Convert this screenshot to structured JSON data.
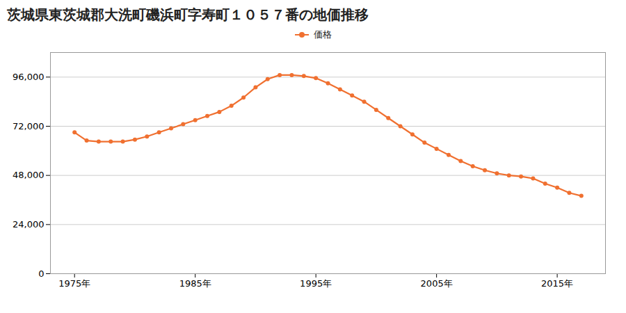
{
  "chart_data": {
    "type": "line",
    "title": "茨城県東茨城郡大洗町磯浜町字寿町１０５７番の地価推移",
    "x": [
      1975,
      1976,
      1977,
      1978,
      1979,
      1980,
      1981,
      1982,
      1983,
      1984,
      1985,
      1986,
      1987,
      1988,
      1989,
      1990,
      1991,
      1992,
      1993,
      1994,
      1995,
      1996,
      1997,
      1998,
      1999,
      2000,
      2001,
      2002,
      2003,
      2004,
      2005,
      2006,
      2007,
      2008,
      2009,
      2010,
      2011,
      2012,
      2013,
      2014,
      2015,
      2016,
      2017
    ],
    "series": [
      {
        "name": "価格",
        "color": "#F07030",
        "marker": "circle",
        "values": [
          69000,
          65000,
          64500,
          64500,
          64500,
          65500,
          67000,
          69000,
          71000,
          73000,
          75000,
          77000,
          79000,
          82000,
          86000,
          91000,
          95000,
          97000,
          97000,
          96500,
          95500,
          93000,
          90000,
          87000,
          84000,
          80000,
          76000,
          72000,
          68000,
          64000,
          61000,
          58000,
          55000,
          52500,
          50500,
          49000,
          48000,
          47500,
          46500,
          44000,
          42000,
          39500,
          38000
        ]
      }
    ],
    "xlim": [
      1973,
      2019
    ],
    "xticks": [
      {
        "value": 1975,
        "label": "1975年"
      },
      {
        "value": 1985,
        "label": "1985年"
      },
      {
        "value": 1995,
        "label": "1995年"
      },
      {
        "value": 2005,
        "label": "2005年"
      },
      {
        "value": 2015,
        "label": "2015年"
      }
    ],
    "ylim": [
      0,
      108000
    ],
    "yticks": [
      0,
      {
        "value": 24000,
        "label": "24,000"
      },
      {
        "value": 48000,
        "label": "48,000"
      },
      {
        "value": 72000,
        "label": "72,000"
      },
      {
        "value": 96000,
        "label": "96,000"
      }
    ],
    "grid": true,
    "legend": "top"
  }
}
